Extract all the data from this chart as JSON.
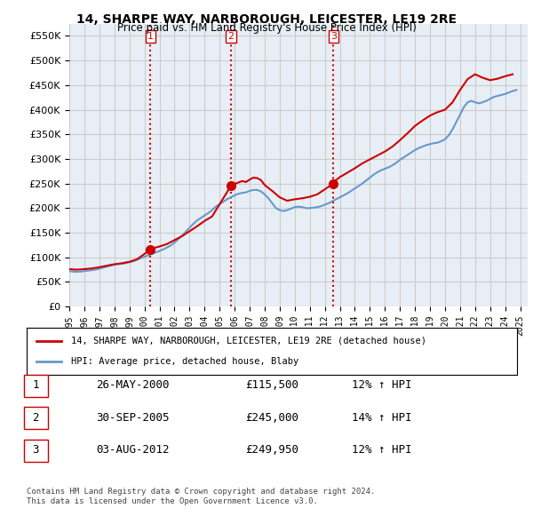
{
  "title": "14, SHARPE WAY, NARBOROUGH, LEICESTER, LE19 2RE",
  "subtitle": "Price paid vs. HM Land Registry's House Price Index (HPI)",
  "ylim": [
    0,
    575000
  ],
  "yticks": [
    0,
    50000,
    100000,
    150000,
    200000,
    250000,
    300000,
    350000,
    400000,
    450000,
    500000,
    550000
  ],
  "xlim_start": 1995.0,
  "xlim_end": 2025.5,
  "sale_dates_decimal": [
    2000.4,
    2005.75,
    2012.58
  ],
  "sale_prices": [
    115500,
    245000,
    249950
  ],
  "sale_labels": [
    "1",
    "2",
    "3"
  ],
  "legend_red": "14, SHARPE WAY, NARBOROUGH, LEICESTER, LE19 2RE (detached house)",
  "legend_blue": "HPI: Average price, detached house, Blaby",
  "table_rows": [
    [
      "1",
      "26-MAY-2000",
      "£115,500",
      "12% ↑ HPI"
    ],
    [
      "2",
      "30-SEP-2005",
      "£245,000",
      "14% ↑ HPI"
    ],
    [
      "3",
      "03-AUG-2012",
      "£249,950",
      "12% ↑ HPI"
    ]
  ],
  "footer": "Contains HM Land Registry data © Crown copyright and database right 2024.\nThis data is licensed under the Open Government Licence v3.0.",
  "red_color": "#cc0000",
  "blue_color": "#6699cc",
  "dashed_color": "#cc0000",
  "grid_color": "#cccccc",
  "background_color": "#ffffff",
  "plot_bg_color": "#e8eef5",
  "hpi_years": [
    1995.0,
    1995.25,
    1995.5,
    1995.75,
    1996.0,
    1996.25,
    1996.5,
    1996.75,
    1997.0,
    1997.25,
    1997.5,
    1997.75,
    1998.0,
    1998.25,
    1998.5,
    1998.75,
    1999.0,
    1999.25,
    1999.5,
    1999.75,
    2000.0,
    2000.25,
    2000.5,
    2000.75,
    2001.0,
    2001.25,
    2001.5,
    2001.75,
    2002.0,
    2002.25,
    2002.5,
    2002.75,
    2003.0,
    2003.25,
    2003.5,
    2003.75,
    2004.0,
    2004.25,
    2004.5,
    2004.75,
    2005.0,
    2005.25,
    2005.5,
    2005.75,
    2006.0,
    2006.25,
    2006.5,
    2006.75,
    2007.0,
    2007.25,
    2007.5,
    2007.75,
    2008.0,
    2008.25,
    2008.5,
    2008.75,
    2009.0,
    2009.25,
    2009.5,
    2009.75,
    2010.0,
    2010.25,
    2010.5,
    2010.75,
    2011.0,
    2011.25,
    2011.5,
    2011.75,
    2012.0,
    2012.25,
    2012.5,
    2012.75,
    2013.0,
    2013.25,
    2013.5,
    2013.75,
    2014.0,
    2014.25,
    2014.5,
    2014.75,
    2015.0,
    2015.25,
    2015.5,
    2015.75,
    2016.0,
    2016.25,
    2016.5,
    2016.75,
    2017.0,
    2017.25,
    2017.5,
    2017.75,
    2018.0,
    2018.25,
    2018.5,
    2018.75,
    2019.0,
    2019.25,
    2019.5,
    2019.75,
    2020.0,
    2020.25,
    2020.5,
    2020.75,
    2021.0,
    2021.25,
    2021.5,
    2021.75,
    2022.0,
    2022.25,
    2022.5,
    2022.75,
    2023.0,
    2023.25,
    2023.5,
    2023.75,
    2024.0,
    2024.25,
    2024.5,
    2024.75
  ],
  "hpi_values": [
    72000,
    71000,
    70500,
    71000,
    72000,
    73000,
    74000,
    75000,
    77000,
    79000,
    81000,
    83000,
    85000,
    86000,
    87000,
    88000,
    90000,
    92000,
    95000,
    98000,
    101000,
    104000,
    107000,
    110000,
    113000,
    116000,
    120000,
    124000,
    130000,
    137000,
    144000,
    152000,
    160000,
    168000,
    175000,
    180000,
    185000,
    190000,
    196000,
    203000,
    208000,
    213000,
    218000,
    222000,
    226000,
    229000,
    231000,
    232000,
    235000,
    237000,
    237000,
    234000,
    228000,
    220000,
    210000,
    200000,
    196000,
    194000,
    196000,
    199000,
    202000,
    203000,
    202000,
    200000,
    200000,
    201000,
    202000,
    204000,
    207000,
    210000,
    214000,
    218000,
    222000,
    226000,
    230000,
    235000,
    240000,
    245000,
    250000,
    256000,
    262000,
    268000,
    273000,
    277000,
    280000,
    283000,
    287000,
    292000,
    298000,
    303000,
    308000,
    313000,
    318000,
    322000,
    325000,
    328000,
    330000,
    332000,
    333000,
    336000,
    340000,
    348000,
    360000,
    375000,
    390000,
    405000,
    415000,
    418000,
    415000,
    413000,
    415000,
    418000,
    422000,
    426000,
    428000,
    430000,
    432000,
    435000,
    438000,
    440000
  ],
  "red_years": [
    1995.0,
    1995.5,
    1996.0,
    1996.5,
    1997.0,
    1997.5,
    1998.0,
    1998.5,
    1999.0,
    1999.5,
    2000.4,
    2000.5,
    2001.0,
    2001.5,
    2002.0,
    2002.5,
    2003.0,
    2003.5,
    2004.0,
    2004.5,
    2005.75,
    2005.9,
    2006.25,
    2006.5,
    2006.75,
    2007.0,
    2007.25,
    2007.5,
    2007.75,
    2008.0,
    2008.5,
    2009.0,
    2009.5,
    2010.0,
    2010.5,
    2011.0,
    2011.5,
    2012.58,
    2012.75,
    2013.0,
    2013.5,
    2014.0,
    2014.5,
    2015.0,
    2015.5,
    2016.0,
    2016.5,
    2017.0,
    2017.5,
    2018.0,
    2018.5,
    2019.0,
    2019.5,
    2020.0,
    2020.5,
    2021.0,
    2021.5,
    2022.0,
    2022.5,
    2023.0,
    2023.5,
    2024.0,
    2024.5
  ],
  "red_values": [
    76000,
    75000,
    76000,
    77500,
    80000,
    83000,
    86000,
    88000,
    91000,
    96000,
    115500,
    118000,
    122000,
    127000,
    135000,
    143000,
    153000,
    163000,
    174000,
    183000,
    245000,
    248000,
    252000,
    255000,
    253000,
    258000,
    262000,
    261000,
    257000,
    247000,
    235000,
    222000,
    215000,
    218000,
    220000,
    223000,
    228000,
    249950,
    257000,
    263000,
    272000,
    281000,
    291000,
    299000,
    307000,
    315000,
    325000,
    338000,
    352000,
    367000,
    378000,
    388000,
    395000,
    400000,
    415000,
    440000,
    462000,
    472000,
    465000,
    460000,
    463000,
    468000,
    472000
  ]
}
